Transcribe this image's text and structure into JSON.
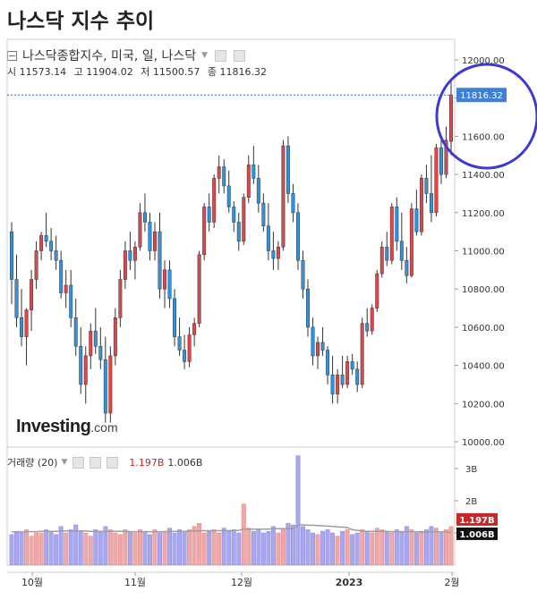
{
  "page": {
    "title": "나스닥 지수 추이"
  },
  "header": {
    "instrument": "나스닥종합지수, 미국, 일, 나스닥",
    "ohlc": [
      {
        "label": "시",
        "value": "11573.14"
      },
      {
        "label": "고",
        "value": "11904.02"
      },
      {
        "label": "저",
        "value": "11500.57"
      },
      {
        "label": "종",
        "value": "11816.32"
      }
    ],
    "logo_main": "Investing",
    "logo_suffix": ".com"
  },
  "volume_header": {
    "label": "거래량 (20)",
    "v1": "1.197B",
    "v2": "1.006B"
  },
  "colors": {
    "up": "#e0464a",
    "down": "#2f93e0",
    "vol_up": "#f0a7a7",
    "vol_down": "#a9a7ef",
    "highlight": "#3b3bd1",
    "ma": "#9e9e9e"
  },
  "chart_data": {
    "type": "candlestick",
    "y_axis": {
      "min": 10000,
      "max": 12000,
      "ticks": [
        "12000.00",
        "11800.00",
        "11600.00",
        "11400.00",
        "11200.00",
        "11000.00",
        "10800.00",
        "10600.00",
        "10400.00",
        "10200.00",
        "10000.00"
      ]
    },
    "volume_axis": {
      "ticks": [
        "3B",
        "2B",
        "1B"
      ]
    },
    "x_labels": [
      "10월",
      "11월",
      "12월",
      "2023",
      "2월"
    ],
    "last_price_label": "11816.32",
    "volume_labels": {
      "current": "1.197B",
      "ma": "1.006B"
    },
    "candles": [
      [
        11100,
        11150,
        10720,
        10850
      ],
      [
        10850,
        10980,
        10600,
        10650
      ],
      [
        10650,
        10800,
        10500,
        10550
      ],
      [
        10550,
        10700,
        10400,
        10690
      ],
      [
        10690,
        10900,
        10580,
        10850
      ],
      [
        10850,
        11050,
        10800,
        11000
      ],
      [
        11000,
        11100,
        10950,
        11080
      ],
      [
        11080,
        11200,
        11020,
        11050
      ],
      [
        11050,
        11120,
        10950,
        11000
      ],
      [
        11000,
        11080,
        10900,
        10950
      ],
      [
        10950,
        11000,
        10750,
        10780
      ],
      [
        10780,
        10900,
        10700,
        10820
      ],
      [
        10820,
        10900,
        10600,
        10650
      ],
      [
        10650,
        10750,
        10450,
        10500
      ],
      [
        10500,
        10600,
        10250,
        10300
      ],
      [
        10300,
        10500,
        10200,
        10450
      ],
      [
        10450,
        10620,
        10380,
        10580
      ],
      [
        10580,
        10700,
        10460,
        10500
      ],
      [
        10500,
        10600,
        10380,
        10430
      ],
      [
        10430,
        10550,
        10100,
        10150
      ],
      [
        10150,
        10500,
        10100,
        10450
      ],
      [
        10450,
        10700,
        10400,
        10650
      ],
      [
        10650,
        10900,
        10600,
        10850
      ],
      [
        10850,
        11050,
        10800,
        11000
      ],
      [
        11000,
        11100,
        10900,
        10950
      ],
      [
        10950,
        11050,
        10850,
        11020
      ],
      [
        11020,
        11250,
        11000,
        11200
      ],
      [
        11200,
        11300,
        11100,
        11150
      ],
      [
        11150,
        11200,
        10950,
        11000
      ],
      [
        11000,
        11150,
        10950,
        11100
      ],
      [
        11100,
        11200,
        10750,
        10800
      ],
      [
        10800,
        10950,
        10700,
        10900
      ],
      [
        10900,
        10950,
        10700,
        10750
      ],
      [
        10750,
        10800,
        10500,
        10550
      ],
      [
        10550,
        10650,
        10450,
        10480
      ],
      [
        10480,
        10560,
        10380,
        10420
      ],
      [
        10420,
        10600,
        10390,
        10560
      ],
      [
        10560,
        10650,
        10500,
        10620
      ],
      [
        10620,
        11000,
        10600,
        10980
      ],
      [
        10980,
        11250,
        10950,
        11230
      ],
      [
        11230,
        11300,
        11100,
        11150
      ],
      [
        11150,
        11400,
        11120,
        11380
      ],
      [
        11380,
        11500,
        11300,
        11440
      ],
      [
        11440,
        11480,
        11300,
        11340
      ],
      [
        11340,
        11420,
        11200,
        11230
      ],
      [
        11230,
        11260,
        11100,
        11150
      ],
      [
        11150,
        11200,
        11000,
        11050
      ],
      [
        11050,
        11300,
        11030,
        11280
      ],
      [
        11280,
        11500,
        11250,
        11450
      ],
      [
        11450,
        11550,
        11350,
        11380
      ],
      [
        11380,
        11450,
        11200,
        11250
      ],
      [
        11250,
        11300,
        11100,
        11130
      ],
      [
        11130,
        11250,
        10950,
        11000
      ],
      [
        11000,
        11100,
        10900,
        10960
      ],
      [
        10960,
        11050,
        10900,
        11020
      ],
      [
        11020,
        11580,
        11000,
        11550
      ],
      [
        11550,
        11600,
        11250,
        11300
      ],
      [
        11300,
        11350,
        11150,
        11200
      ],
      [
        11200,
        11250,
        10900,
        10950
      ],
      [
        10950,
        11000,
        10750,
        10800
      ],
      [
        10800,
        10850,
        10550,
        10600
      ],
      [
        10600,
        10650,
        10400,
        10450
      ],
      [
        10450,
        10550,
        10380,
        10520
      ],
      [
        10520,
        10600,
        10450,
        10480
      ],
      [
        10480,
        10500,
        10300,
        10350
      ],
      [
        10350,
        10450,
        10200,
        10250
      ],
      [
        10250,
        10380,
        10200,
        10350
      ],
      [
        10350,
        10450,
        10280,
        10300
      ],
      [
        10300,
        10450,
        10280,
        10420
      ],
      [
        10420,
        10460,
        10350,
        10380
      ],
      [
        10380,
        10420,
        10260,
        10300
      ],
      [
        10300,
        10650,
        10280,
        10620
      ],
      [
        10620,
        10700,
        10550,
        10580
      ],
      [
        10580,
        10720,
        10560,
        10700
      ],
      [
        10700,
        10900,
        10680,
        10880
      ],
      [
        10880,
        11050,
        10860,
        11020
      ],
      [
        11020,
        11100,
        10920,
        10950
      ],
      [
        10950,
        11250,
        10930,
        11230
      ],
      [
        11230,
        11280,
        11000,
        11050
      ],
      [
        11050,
        11200,
        10900,
        10950
      ],
      [
        10950,
        11020,
        10830,
        10870
      ],
      [
        10870,
        11250,
        10860,
        11220
      ],
      [
        11220,
        11320,
        11080,
        11100
      ],
      [
        11100,
        11400,
        11080,
        11380
      ],
      [
        11380,
        11450,
        11250,
        11300
      ],
      [
        11300,
        11500,
        11150,
        11200
      ],
      [
        11200,
        11560,
        11180,
        11540
      ],
      [
        11540,
        11600,
        11350,
        11400
      ],
      [
        11400,
        11650,
        11380,
        11580
      ],
      [
        11573.14,
        11904.02,
        11500.57,
        11816.32
      ]
    ],
    "volumes": [
      0.95,
      1.05,
      1.0,
      1.1,
      0.9,
      1.0,
      1.0,
      1.1,
      1.05,
      0.95,
      1.2,
      1.0,
      1.1,
      1.25,
      1.05,
      1.0,
      0.9,
      1.1,
      1.05,
      1.2,
      1.1,
      1.0,
      0.95,
      1.1,
      1.05,
      1.0,
      1.1,
      1.05,
      0.95,
      1.1,
      1.0,
      1.05,
      1.15,
      1.0,
      1.1,
      1.05,
      1.1,
      1.2,
      1.3,
      1.0,
      1.05,
      1.1,
      1.0,
      1.15,
      1.05,
      1.1,
      1.0,
      1.9,
      1.15,
      1.05,
      1.1,
      1.0,
      1.05,
      1.2,
      1.0,
      1.1,
      1.3,
      1.25,
      3.4,
      1.2,
      1.1,
      1.0,
      0.95,
      1.05,
      1.1,
      1.0,
      0.9,
      1.05,
      1.1,
      0.95,
      1.0,
      1.1,
      1.05,
      1.0,
      1.15,
      1.1,
      1.05,
      1.0,
      1.1,
      1.05,
      1.2,
      1.1,
      1.0,
      1.05,
      1.1,
      1.2,
      1.15,
      1.0,
      1.1,
      1.197
    ],
    "volume_ma": [
      1.03,
      1.03,
      1.03,
      1.04,
      1.04,
      1.04,
      1.05,
      1.05,
      1.05,
      1.05,
      1.06,
      1.06,
      1.06,
      1.06,
      1.06,
      1.06,
      1.05,
      1.05,
      1.05,
      1.05,
      1.05,
      1.05,
      1.05,
      1.05,
      1.04,
      1.04,
      1.04,
      1.04,
      1.04,
      1.04,
      1.04,
      1.04,
      1.05,
      1.05,
      1.05,
      1.05,
      1.05,
      1.06,
      1.07,
      1.07,
      1.07,
      1.07,
      1.07,
      1.07,
      1.07,
      1.08,
      1.08,
      1.12,
      1.12,
      1.12,
      1.12,
      1.12,
      1.12,
      1.13,
      1.13,
      1.13,
      1.14,
      1.14,
      1.25,
      1.25,
      1.24,
      1.24,
      1.23,
      1.22,
      1.21,
      1.2,
      1.19,
      1.18,
      1.17,
      1.1,
      1.08,
      1.06,
      1.05,
      1.05,
      1.05,
      1.05,
      1.05,
      1.04,
      1.04,
      1.04,
      1.04,
      1.04,
      1.04,
      1.03,
      1.03,
      1.04,
      1.04,
      1.03,
      1.03,
      1.006
    ]
  }
}
